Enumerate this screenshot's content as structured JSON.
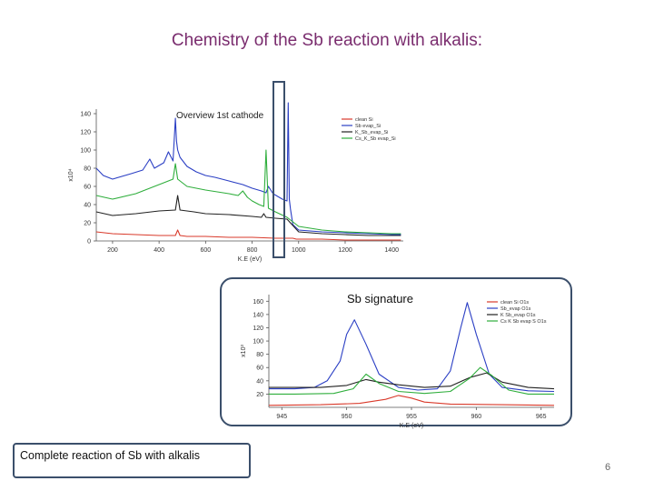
{
  "slide": {
    "title": "Chemistry of the Sb reaction with alkalis:",
    "signature_label": "Sb signature",
    "footnote": "Complete reaction of Sb with alkalis",
    "page_number": "6"
  },
  "colors": {
    "title": "#7a2c6e",
    "frame": "#3b4f6b",
    "series_red": "#d93a2b",
    "series_blue": "#2b3fc4",
    "series_black": "#222222",
    "series_green": "#2fae3c"
  },
  "chart_data": [
    {
      "type": "line",
      "title": "Overview 1st cathode",
      "xlabel": "K.E (eV)",
      "ylabel": "x10⁴",
      "xlim": [
        130,
        1450
      ],
      "ylim": [
        0,
        145
      ],
      "xticks": [
        200,
        400,
        600,
        800,
        1000,
        1200,
        1400
      ],
      "yticks": [
        0,
        20,
        40,
        60,
        80,
        100,
        120,
        140
      ],
      "legend_position": "top-right",
      "legend": [
        "clean Si",
        "Sb evap_Si",
        "K_Sb_evap_Si",
        "Cs_K_Sb evap_Si"
      ],
      "series": [
        {
          "name": "clean Si",
          "color": "#d93a2b",
          "x": [
            130,
            200,
            300,
            400,
            470,
            480,
            490,
            520,
            600,
            700,
            800,
            900,
            960,
            975,
            990,
            1100,
            1200,
            1300,
            1400,
            1440
          ],
          "y": [
            10,
            8,
            7,
            6,
            6,
            12,
            6,
            5,
            5,
            4,
            4,
            3,
            3,
            3,
            2,
            2,
            1,
            1,
            1,
            1
          ]
        },
        {
          "name": "Sb evap_Si",
          "color": "#2b3fc4",
          "x": [
            130,
            160,
            200,
            280,
            330,
            360,
            380,
            400,
            420,
            440,
            460,
            470,
            475,
            480,
            490,
            520,
            560,
            600,
            640,
            700,
            760,
            800,
            840,
            860,
            870,
            890,
            930,
            950,
            955,
            960,
            965,
            975,
            1000,
            1100,
            1200,
            1300,
            1400,
            1440
          ],
          "y": [
            80,
            72,
            68,
            74,
            78,
            90,
            80,
            83,
            86,
            98,
            88,
            135,
            110,
            100,
            92,
            82,
            76,
            72,
            70,
            66,
            62,
            58,
            55,
            53,
            60,
            52,
            46,
            44,
            152,
            46,
            35,
            18,
            12,
            10,
            9,
            8,
            7,
            7
          ]
        },
        {
          "name": "K_Sb_evap_Si",
          "color": "#222222",
          "x": [
            130,
            200,
            300,
            400,
            470,
            480,
            490,
            550,
            600,
            700,
            800,
            840,
            850,
            860,
            900,
            950,
            1000,
            1100,
            1200,
            1300,
            1400,
            1440
          ],
          "y": [
            32,
            28,
            30,
            33,
            34,
            50,
            34,
            32,
            30,
            29,
            27,
            26,
            30,
            26,
            25,
            24,
            10,
            8,
            7,
            6,
            6,
            6
          ]
        },
        {
          "name": "Cs_K_Sb evap_Si",
          "color": "#2fae3c",
          "x": [
            130,
            200,
            300,
            380,
            420,
            460,
            470,
            480,
            520,
            560,
            600,
            650,
            700,
            740,
            760,
            780,
            800,
            830,
            850,
            860,
            870,
            900,
            950,
            1000,
            1100,
            1200,
            1300,
            1400,
            1440
          ],
          "y": [
            50,
            46,
            52,
            60,
            64,
            68,
            85,
            68,
            60,
            58,
            56,
            54,
            52,
            50,
            55,
            48,
            44,
            40,
            38,
            100,
            36,
            32,
            26,
            16,
            12,
            10,
            9,
            8,
            8
          ]
        }
      ]
    },
    {
      "type": "line",
      "title": "",
      "xlabel": "K.E (eV)",
      "ylabel": "x10³",
      "xlim": [
        944,
        966
      ],
      "ylim": [
        0,
        170
      ],
      "xticks": [
        945,
        950,
        955,
        960,
        965
      ],
      "yticks": [
        20,
        40,
        60,
        80,
        100,
        120,
        140,
        160
      ],
      "legend_position": "top-right",
      "legend": [
        "clean Si O1s",
        "Sb_evap O1s",
        "K Sb_evap O1s",
        "Cs K Sb evap S O1s"
      ],
      "series": [
        {
          "name": "clean Si O1s",
          "color": "#d93a2b",
          "x": [
            944,
            948,
            951,
            953,
            954,
            955,
            956,
            958,
            962,
            966
          ],
          "y": [
            3,
            4,
            6,
            12,
            18,
            14,
            8,
            5,
            4,
            3
          ]
        },
        {
          "name": "Sb_evap O1s",
          "color": "#2b3fc4",
          "x": [
            944,
            946,
            947.5,
            948.5,
            949.5,
            950,
            950.6,
            951.5,
            952.5,
            954,
            955.5,
            957,
            958,
            958.8,
            959.3,
            960,
            961,
            962,
            964,
            966
          ],
          "y": [
            28,
            28,
            30,
            40,
            70,
            110,
            132,
            95,
            50,
            30,
            26,
            28,
            55,
            120,
            158,
            110,
            50,
            30,
            25,
            24
          ]
        },
        {
          "name": "K Sb_evap O1s",
          "color": "#222222",
          "x": [
            944,
            948,
            950,
            951.5,
            952.5,
            954,
            956,
            958,
            959.5,
            960.8,
            962,
            964,
            966
          ],
          "y": [
            30,
            30,
            33,
            42,
            38,
            34,
            30,
            32,
            45,
            52,
            38,
            30,
            28
          ]
        },
        {
          "name": "Cs K Sb evap S O1s",
          "color": "#2fae3c",
          "x": [
            944,
            946,
            949,
            950.5,
            951.5,
            952.5,
            954,
            956,
            958,
            959.5,
            960.3,
            961.2,
            962.5,
            964,
            966
          ],
          "y": [
            20,
            20,
            21,
            28,
            50,
            36,
            24,
            21,
            24,
            44,
            60,
            48,
            26,
            20,
            20
          ]
        }
      ]
    }
  ]
}
